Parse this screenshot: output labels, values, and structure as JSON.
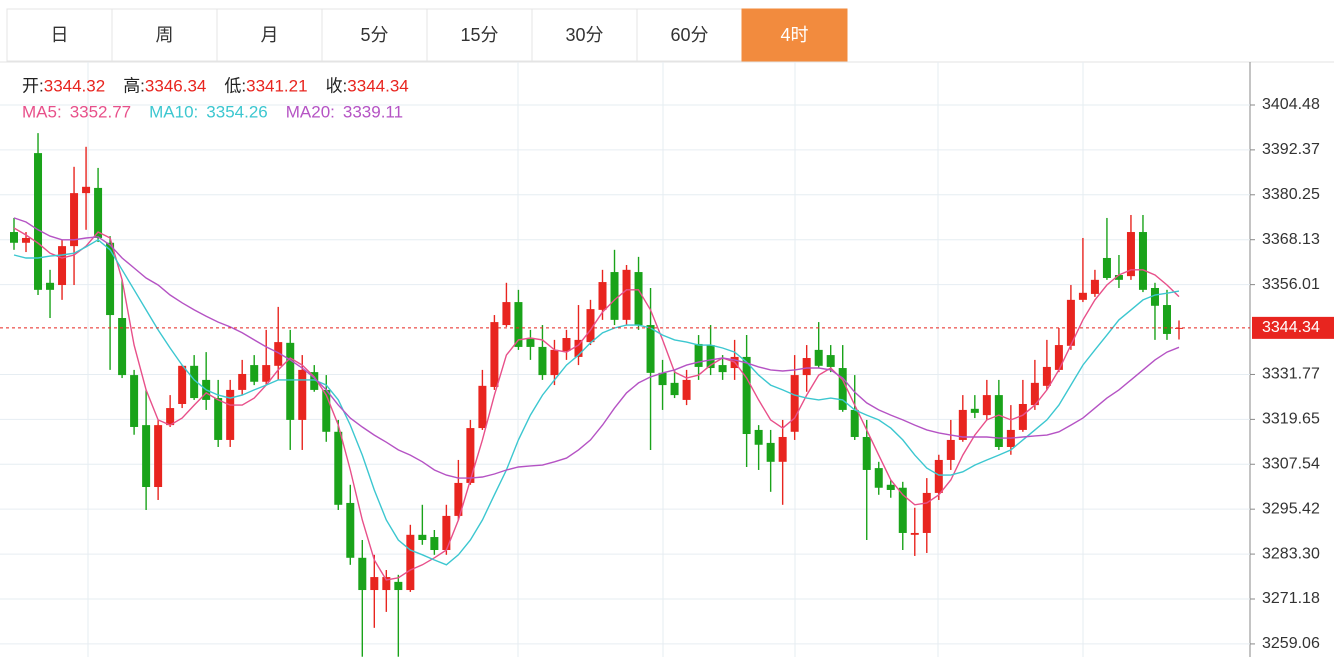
{
  "tabs": {
    "items": [
      "日",
      "周",
      "月",
      "5分",
      "15分",
      "30分",
      "60分",
      "4时"
    ],
    "active": 7
  },
  "chart_data": {
    "type": "candlestick",
    "ohlc_labels": [
      "开:",
      "高:",
      "低:",
      "收:"
    ],
    "up_color": "#e8251f",
    "down_color": "#1aa31a",
    "ylim": [
      3255.53,
      3416.08
    ],
    "yticks": [
      3404.48,
      3392.37,
      3380.25,
      3368.13,
      3356.01,
      3331.77,
      3319.65,
      3307.54,
      3295.42,
      {
        "value": 3283.3,
        "label": "3283.30"
      },
      3271.18,
      3259.06
    ],
    "grid": true,
    "open": [
      3370.2,
      3367.3,
      3391.5,
      3356.5,
      3355.9,
      3366.4,
      3380.7,
      3382.1,
      3367.3,
      3347.0,
      3331.6,
      3318.1,
      3301.4,
      3318.1,
      3323.8,
      3334.1,
      3330.3,
      3325.4,
      3314.1,
      3327.6,
      3334.3,
      3329.8,
      3334.1,
      3340.3,
      3319.5,
      3332.4,
      3327.6,
      3316.3,
      3297.1,
      3282.3,
      3273.6,
      3273.6,
      3275.8,
      3273.6,
      3288.5,
      3287.9,
      3284.4,
      3293.6,
      3302.5,
      3317.3,
      3328.4,
      3345.1,
      3351.3,
      3341.4,
      3339.2,
      3331.6,
      3338.1,
      3336.5,
      3340.5,
      3349.2,
      3359.4,
      3346.5,
      3359.4,
      3345.1,
      3332.2,
      3329.5,
      3324.9,
      3340.0,
      3339.7,
      3334.3,
      3333.5,
      3336.5,
      3316.8,
      3313.3,
      3308.2,
      3316.3,
      3331.6,
      3338.4,
      3337.0,
      3333.5,
      3322.2,
      3314.9,
      3306.5,
      3302.0,
      3301.2,
      3288.5,
      3289.0,
      3299.8,
      3308.7,
      3314.1,
      3322.5,
      3320.8,
      3326.2,
      3312.2,
      3316.8,
      3323.5,
      3328.7,
      3333.0,
      3339.5,
      3351.9,
      3353.5,
      3363.2,
      3358.6,
      3358.3,
      3370.2,
      3355.1,
      3350.5,
      3344.32
    ],
    "high": [
      3374.0,
      3370.2,
      3396.9,
      3360.0,
      3368.1,
      3387.8,
      3393.2,
      3387.5,
      3369.1,
      3357.3,
      3333.0,
      3327.6,
      3319.5,
      3326.2,
      3334.3,
      3337.0,
      3337.8,
      3330.3,
      3330.3,
      3335.7,
      3337.0,
      3343.8,
      3350.0,
      3343.8,
      3337.0,
      3334.3,
      3331.6,
      3319.5,
      3302.0,
      3287.1,
      3283.1,
      3279.0,
      3277.7,
      3291.2,
      3296.6,
      3289.8,
      3296.6,
      3308.7,
      3319.5,
      3333.0,
      3347.8,
      3356.5,
      3354.6,
      3343.8,
      3345.1,
      3341.1,
      3343.8,
      3350.5,
      3351.9,
      3360.0,
      3365.4,
      3361.3,
      3363.5,
      3355.1,
      3335.7,
      3333.0,
      3333.0,
      3342.4,
      3345.1,
      3337.0,
      3341.1,
      3342.4,
      3318.1,
      3316.8,
      3319.5,
      3337.0,
      3339.7,
      3345.9,
      3339.7,
      3339.7,
      3331.6,
      3319.5,
      3308.2,
      3303.3,
      3302.8,
      3295.8,
      3303.8,
      3310.1,
      3319.5,
      3326.2,
      3326.2,
      3330.3,
      3330.3,
      3323.5,
      3330.3,
      3335.7,
      3341.1,
      3344.3,
      3355.9,
      3368.6,
      3360.0,
      3374.0,
      3364.0,
      3374.8,
      3374.8,
      3356.5,
      3354.6,
      3346.34
    ],
    "low": [
      3365.4,
      3364.8,
      3353.2,
      3347.0,
      3351.9,
      3355.9,
      3370.8,
      3367.5,
      3333.0,
      3330.8,
      3315.5,
      3295.2,
      3297.9,
      3317.6,
      3322.7,
      3324.9,
      3322.2,
      3312.2,
      3312.2,
      3326.2,
      3328.9,
      3328.9,
      3330.3,
      3311.4,
      3311.4,
      3327.1,
      3313.6,
      3295.2,
      3280.4,
      3255.6,
      3263.4,
      3267.7,
      3255.6,
      3273.1,
      3285.8,
      3283.1,
      3283.1,
      3292.5,
      3302.0,
      3316.8,
      3327.6,
      3344.6,
      3338.4,
      3335.7,
      3330.3,
      3328.9,
      3335.7,
      3334.3,
      3339.7,
      3346.5,
      3345.1,
      3345.1,
      3343.8,
      3311.4,
      3322.2,
      3325.4,
      3323.5,
      3330.3,
      3331.6,
      3330.3,
      3330.3,
      3306.8,
      3306.0,
      3300.1,
      3296.6,
      3314.1,
      3327.1,
      3333.5,
      3332.4,
      3321.7,
      3314.1,
      3287.1,
      3299.3,
      3298.5,
      3284.4,
      3282.8,
      3283.6,
      3297.9,
      3306.0,
      3313.6,
      3320.0,
      3319.5,
      3311.4,
      3310.1,
      3316.3,
      3322.2,
      3327.6,
      3332.4,
      3338.4,
      3351.3,
      3352.7,
      3357.3,
      3355.1,
      3357.3,
      3354.0,
      3341.1,
      3341.1,
      3341.21
    ],
    "close": [
      3367.3,
      3368.6,
      3354.6,
      3354.6,
      3366.4,
      3380.7,
      3382.4,
      3368.6,
      3347.8,
      3331.6,
      3317.6,
      3301.4,
      3318.1,
      3322.7,
      3334.1,
      3325.4,
      3324.9,
      3314.1,
      3327.6,
      3331.9,
      3329.8,
      3334.3,
      3340.5,
      3319.5,
      3333.0,
      3327.6,
      3316.3,
      3296.6,
      3282.3,
      3273.6,
      3277.1,
      3277.1,
      3273.6,
      3288.5,
      3287.1,
      3284.4,
      3293.6,
      3302.5,
      3317.3,
      3328.7,
      3345.9,
      3351.3,
      3339.2,
      3339.2,
      3331.6,
      3338.4,
      3341.6,
      3341.1,
      3349.4,
      3356.7,
      3346.5,
      3360.0,
      3345.1,
      3332.2,
      3328.9,
      3326.2,
      3330.3,
      3333.8,
      3333.5,
      3332.4,
      3336.5,
      3315.7,
      3312.8,
      3308.2,
      3314.9,
      3331.6,
      3336.2,
      3334.1,
      3333.8,
      3322.2,
      3314.9,
      3306.0,
      3301.2,
      3300.6,
      3289.0,
      3289.0,
      3299.8,
      3308.7,
      3314.1,
      3322.2,
      3321.4,
      3326.2,
      3312.2,
      3316.8,
      3323.8,
      3329.5,
      3333.8,
      3339.7,
      3351.9,
      3353.8,
      3357.3,
      3357.8,
      3357.3,
      3370.2,
      3354.6,
      3350.3,
      3342.7,
      3344.34
    ],
    "series": [
      {
        "name": "MA5:",
        "color": "#e8508a",
        "values": [
          3371.3,
          3369.4,
          3367.2,
          3364.5,
          3363.2,
          3364.0,
          3366.4,
          3370.2,
          3368.6,
          3357.3,
          3339.7,
          3327.6,
          3319.5,
          3318.1,
          3320.0,
          3323.5,
          3326.8,
          3324.9,
          3323.5,
          3323.5,
          3325.4,
          3328.9,
          3333.0,
          3336.2,
          3334.3,
          3331.1,
          3326.2,
          3318.1,
          3306.0,
          3292.5,
          3281.7,
          3276.3,
          3276.9,
          3279.0,
          3280.4,
          3282.3,
          3284.4,
          3292.5,
          3303.3,
          3314.1,
          3326.2,
          3337.0,
          3341.1,
          3341.6,
          3341.1,
          3338.4,
          3337.8,
          3339.7,
          3343.8,
          3348.6,
          3351.9,
          3354.6,
          3354.6,
          3349.2,
          3341.1,
          3332.4,
          3330.8,
          3331.6,
          3334.3,
          3336.2,
          3335.1,
          3330.8,
          3324.9,
          3319.5,
          3317.3,
          3320.0,
          3326.2,
          3331.6,
          3333.5,
          3330.3,
          3323.5,
          3316.8,
          3310.0,
          3303.3,
          3299.3,
          3296.6,
          3297.1,
          3299.3,
          3303.3,
          3310.0,
          3315.4,
          3319.5,
          3320.8,
          3319.5,
          3320.8,
          3323.5,
          3327.6,
          3333.0,
          3339.7,
          3346.5,
          3351.9,
          3355.9,
          3358.6,
          3360.0,
          3360.0,
          3358.6,
          3355.9,
          3352.77
        ]
      },
      {
        "name": "MA10:",
        "color": "#3cc7d0",
        "values": [
          3364.0,
          3363.2,
          3363.2,
          3363.7,
          3364.0,
          3364.5,
          3366.2,
          3368.1,
          3365.4,
          3360.0,
          3354.6,
          3349.2,
          3343.8,
          3338.9,
          3334.3,
          3330.3,
          3327.6,
          3326.2,
          3325.4,
          3326.2,
          3327.6,
          3328.9,
          3330.3,
          3330.3,
          3330.3,
          3330.3,
          3328.9,
          3324.9,
          3318.1,
          3310.0,
          3300.6,
          3292.5,
          3287.1,
          3284.4,
          3283.1,
          3281.7,
          3280.4,
          3283.1,
          3287.1,
          3292.5,
          3299.3,
          3306.0,
          3314.1,
          3320.8,
          3326.2,
          3330.3,
          3334.3,
          3337.0,
          3340.3,
          3343.0,
          3344.3,
          3345.1,
          3345.1,
          3344.3,
          3342.4,
          3341.1,
          3340.5,
          3339.7,
          3339.7,
          3338.9,
          3337.8,
          3335.1,
          3331.6,
          3328.9,
          3327.6,
          3326.2,
          3325.4,
          3324.9,
          3325.4,
          3324.9,
          3322.2,
          3320.8,
          3319.5,
          3317.3,
          3314.1,
          3310.0,
          3306.5,
          3304.6,
          3304.6,
          3305.5,
          3307.3,
          3308.7,
          3310.0,
          3311.4,
          3314.1,
          3316.8,
          3319.5,
          3323.5,
          3328.9,
          3334.3,
          3338.4,
          3342.4,
          3346.5,
          3349.2,
          3351.9,
          3353.2,
          3353.7,
          3354.26
        ]
      },
      {
        "name": "MA20:",
        "color": "#b553c4",
        "values": [
          3374.0,
          3372.9,
          3370.8,
          3369.1,
          3368.1,
          3368.1,
          3368.6,
          3368.9,
          3366.7,
          3363.2,
          3360.5,
          3357.8,
          3355.9,
          3353.2,
          3351.1,
          3349.2,
          3347.5,
          3345.9,
          3344.6,
          3343.0,
          3341.1,
          3339.2,
          3337.6,
          3335.7,
          3333.5,
          3330.8,
          3327.6,
          3323.5,
          3320.0,
          3317.6,
          3315.4,
          3313.5,
          3311.4,
          3310.0,
          3308.2,
          3306.0,
          3304.6,
          3303.8,
          3303.8,
          3304.1,
          3304.9,
          3306.0,
          3306.8,
          3307.1,
          3307.3,
          3308.2,
          3309.2,
          3311.4,
          3314.1,
          3318.1,
          3322.7,
          3326.8,
          3329.5,
          3331.1,
          3332.2,
          3333.0,
          3334.3,
          3335.1,
          3335.7,
          3336.2,
          3335.7,
          3334.9,
          3333.8,
          3333.0,
          3332.7,
          3333.0,
          3333.5,
          3333.5,
          3333.0,
          3330.8,
          3327.0,
          3324.1,
          3322.2,
          3320.8,
          3319.5,
          3318.1,
          3316.8,
          3316.0,
          3315.4,
          3314.9,
          3314.9,
          3314.9,
          3314.6,
          3314.6,
          3314.9,
          3315.2,
          3315.4,
          3316.3,
          3318.1,
          3320.0,
          3322.7,
          3325.4,
          3327.6,
          3330.3,
          3333.0,
          3335.7,
          3337.8,
          3339.11
        ]
      }
    ]
  }
}
